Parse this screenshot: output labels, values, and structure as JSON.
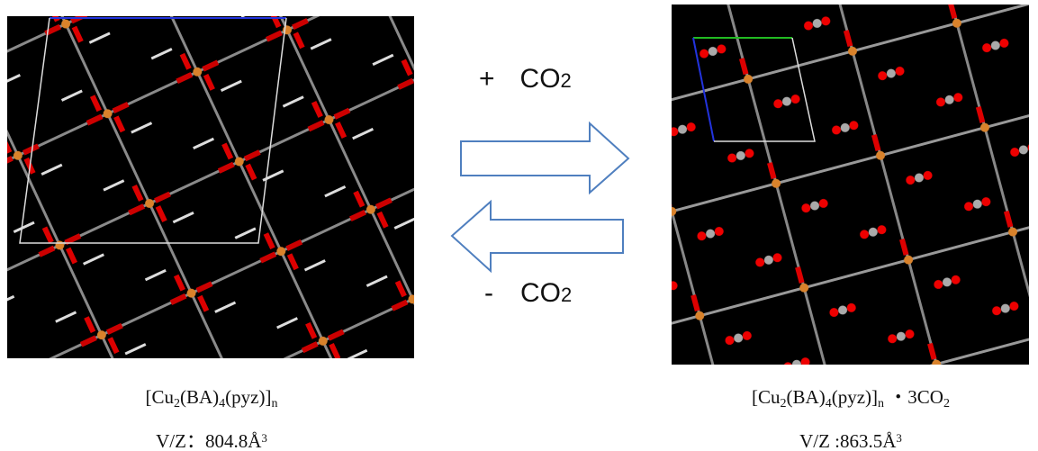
{
  "reaction": {
    "forward": {
      "sign": "+",
      "species": [
        "CO",
        "2"
      ]
    },
    "reverse": {
      "sign": "-",
      "species": [
        "CO",
        "2"
      ]
    }
  },
  "left": {
    "formula": [
      "[Cu",
      "2",
      "(BA)",
      "4",
      "(pyz)]",
      "n"
    ],
    "volume": [
      "V/Z：804.8Å",
      "3"
    ]
  },
  "right": {
    "formula": [
      "[Cu",
      "2",
      "(BA)",
      "4",
      "(pyz)]",
      "n",
      " ・3CO",
      "2"
    ],
    "volume": [
      "V/Z :863.5Å",
      "3"
    ]
  }
}
